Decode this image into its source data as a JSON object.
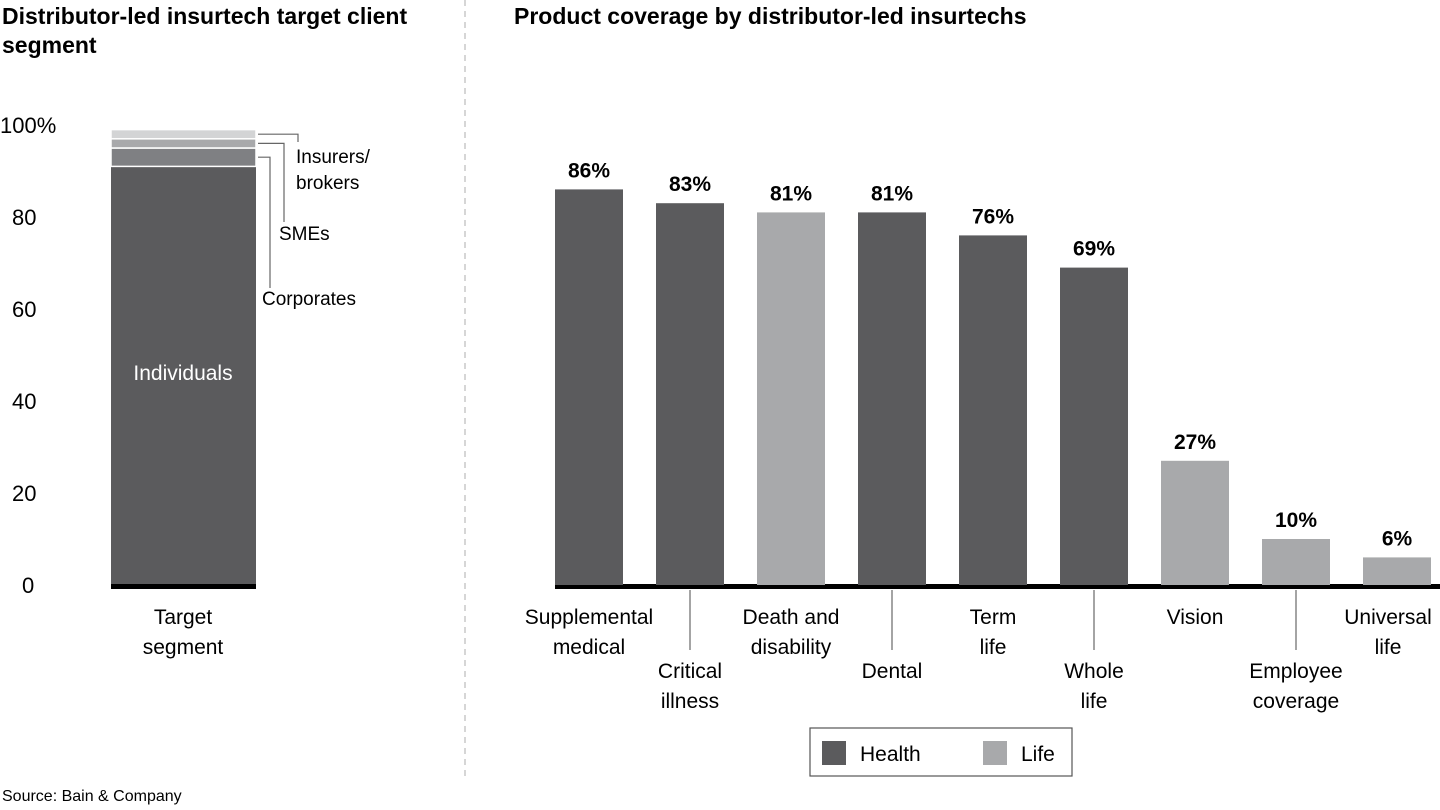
{
  "source": "Source: Bain & Company",
  "colors": {
    "health": "#5b5b5d",
    "life": "#a8a9ab",
    "corporates": "#7f8083",
    "smes": "#a8a9ab",
    "insurers": "#d3d4d5"
  },
  "chart_data": [
    {
      "type": "bar",
      "stacked": true,
      "title": "Distributor-led insurtech target client segment",
      "categories": [
        "Target segment"
      ],
      "yticks": [
        "0",
        "20",
        "40",
        "60",
        "80",
        "100%"
      ],
      "ylim": [
        0,
        100
      ],
      "series": [
        {
          "name": "Individuals",
          "values": [
            91
          ]
        },
        {
          "name": "Corporates",
          "values": [
            4
          ]
        },
        {
          "name": "SMEs",
          "values": [
            2
          ]
        },
        {
          "name": "Insurers/ brokers",
          "values": [
            2
          ]
        }
      ]
    },
    {
      "type": "bar",
      "title": "Product coverage by distributor-led insurtechs",
      "ylim": [
        0,
        100
      ],
      "categories": [
        "Supplemental medical",
        "Critical illness",
        "Death and disability",
        "Dental",
        "Term life",
        "Whole life",
        "Vision",
        "Employee coverage",
        "Universal life"
      ],
      "values": [
        86,
        83,
        81,
        81,
        76,
        69,
        27,
        10,
        6
      ],
      "data_labels": [
        "86%",
        "83%",
        "81%",
        "81%",
        "76%",
        "69%",
        "27%",
        "10%",
        "6%"
      ],
      "groups": [
        "Health",
        "Health",
        "Life",
        "Health",
        "Health",
        "Health",
        "Life",
        "Life",
        "Life"
      ],
      "legend": {
        "position": "bottom",
        "items": [
          "Health",
          "Life"
        ]
      }
    }
  ]
}
